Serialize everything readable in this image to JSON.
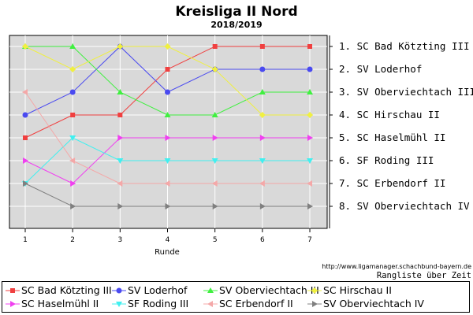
{
  "chart_data": {
    "type": "line",
    "title": "Kreisliga II Nord",
    "subtitle": "2018/2019",
    "xlabel": "Runde",
    "x": [
      1,
      2,
      3,
      4,
      5,
      6,
      7
    ],
    "y_axis_reversed": true,
    "ylim": [
      1,
      8
    ],
    "grid": true,
    "plot_background": "#d9d9d9",
    "legend_placement": "bottom",
    "right_labels": [
      "1. SC Bad Kötzting III",
      "2. SV Loderhof",
      "3. SV Oberviechtach III",
      "4. SC Hirschau II",
      "5. SC Haselmühl II",
      "6. SF Roding III",
      "7. SC Erbendorf II",
      "8. SV Oberviechtach IV"
    ],
    "series": [
      {
        "name": "SC Bad Kötzting III",
        "color": "#f04040",
        "marker": "square",
        "values": [
          5,
          4,
          4,
          2,
          1,
          1,
          1
        ]
      },
      {
        "name": "SV Loderhof",
        "color": "#4a4af0",
        "marker": "circle",
        "values": [
          4,
          3,
          1,
          3,
          2,
          2,
          2
        ]
      },
      {
        "name": "SV Oberviechtach III",
        "color": "#40f040",
        "marker": "triangle-up",
        "values": [
          1,
          1,
          3,
          4,
          4,
          3,
          3
        ]
      },
      {
        "name": "SC Hirschau II",
        "color": "#f0f040",
        "marker": "diamond",
        "values": [
          1,
          2,
          1,
          1,
          2,
          4,
          4
        ]
      },
      {
        "name": "SC Haselmühl II",
        "color": "#f040f0",
        "marker": "triangle-right",
        "values": [
          6,
          7,
          5,
          5,
          5,
          5,
          5
        ]
      },
      {
        "name": "SF Roding III",
        "color": "#40f0f0",
        "marker": "triangle-down",
        "values": [
          7,
          5,
          6,
          6,
          6,
          6,
          6
        ]
      },
      {
        "name": "SC Erbendorf II",
        "color": "#f4a8a8",
        "marker": "triangle-left",
        "values": [
          3,
          6,
          7,
          7,
          7,
          7,
          7
        ]
      },
      {
        "name": "SV Oberviechtach IV",
        "color": "#808080",
        "marker": "triangle-right",
        "values": [
          7,
          8,
          8,
          8,
          8,
          8,
          8
        ]
      }
    ]
  },
  "footer": {
    "url": "http://www.ligamanager.schachbund-bayern.de",
    "caption": "Rangliste über Zeit"
  }
}
